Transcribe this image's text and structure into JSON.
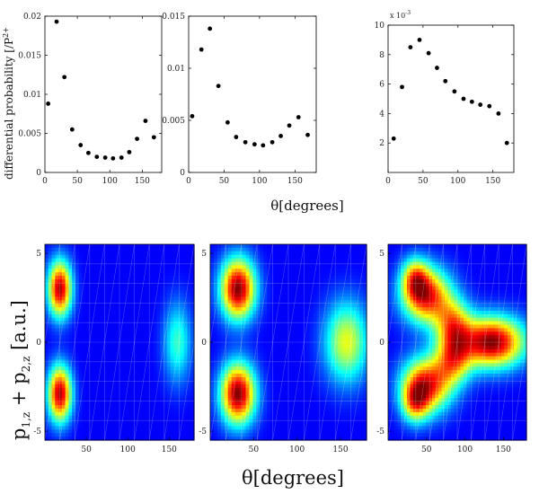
{
  "chart_data": {
    "type": "scatter",
    "figure": {
      "top_ylabel": "differential probability [/P",
      "top_ylabel_tail": "2+",
      "top_xlabel": "θ[degrees]",
      "bottom_ylabel_text": "p",
      "bottom_ylabel_sub1": "1,z",
      "bottom_ylabel_plus": " + p",
      "bottom_ylabel_sub2": "2,z",
      "bottom_ylabel_unit": " [a.u.]",
      "bottom_xlabel": "θ[degrees]"
    },
    "top_panels": [
      {
        "xlim": [
          0,
          180
        ],
        "ylim": [
          0,
          0.02
        ],
        "xticks": [
          {
            "v": 0,
            "label": "0"
          },
          {
            "v": 50,
            "label": "50"
          },
          {
            "v": 100,
            "label": "100"
          },
          {
            "v": 150,
            "label": "150"
          }
        ],
        "yticks": [
          {
            "v": 0,
            "label": "0"
          },
          {
            "v": 0.005,
            "label": "0.005"
          },
          {
            "v": 0.01,
            "label": "0.01"
          },
          {
            "v": 0.015,
            "label": "0.015"
          },
          {
            "v": 0.02,
            "label": "0.02"
          }
        ],
        "exponent_label": "",
        "x": [
          5,
          18,
          30,
          42,
          55,
          67,
          80,
          93,
          105,
          118,
          130,
          142,
          155,
          168
        ],
        "y": [
          0.0088,
          0.0193,
          0.0122,
          0.0055,
          0.0035,
          0.0025,
          0.002,
          0.0019,
          0.0018,
          0.0019,
          0.0026,
          0.0043,
          0.0066,
          0.0045
        ]
      },
      {
        "xlim": [
          0,
          180
        ],
        "ylim": [
          0,
          0.015
        ],
        "xticks": [
          {
            "v": 0,
            "label": "0"
          },
          {
            "v": 50,
            "label": "50"
          },
          {
            "v": 100,
            "label": "100"
          },
          {
            "v": 150,
            "label": "150"
          }
        ],
        "yticks": [
          {
            "v": 0,
            "label": "0"
          },
          {
            "v": 0.005,
            "label": "0.005"
          },
          {
            "v": 0.01,
            "label": "0.01"
          },
          {
            "v": 0.015,
            "label": "0.015"
          }
        ],
        "exponent_label": "",
        "x": [
          5,
          18,
          30,
          42,
          55,
          67,
          80,
          93,
          105,
          118,
          130,
          142,
          155,
          168
        ],
        "y": [
          0.0054,
          0.0118,
          0.0138,
          0.0083,
          0.0048,
          0.0034,
          0.0029,
          0.0027,
          0.0026,
          0.0029,
          0.0035,
          0.0045,
          0.0053,
          0.0036
        ]
      },
      {
        "xlim": [
          0,
          180
        ],
        "ylim": [
          0,
          0.01
        ],
        "xticks": [
          {
            "v": 0,
            "label": "0"
          },
          {
            "v": 50,
            "label": "50"
          },
          {
            "v": 100,
            "label": "100"
          },
          {
            "v": 150,
            "label": "150"
          }
        ],
        "yticks": [
          {
            "v": 0.002,
            "label": "2"
          },
          {
            "v": 0.004,
            "label": "4"
          },
          {
            "v": 0.006,
            "label": "6"
          },
          {
            "v": 0.008,
            "label": "8"
          },
          {
            "v": 0.01,
            "label": "10"
          }
        ],
        "exponent_label": "x 10",
        "exponent_power": "-3",
        "x": [
          8,
          20,
          32,
          45,
          58,
          70,
          82,
          95,
          108,
          120,
          132,
          145,
          158,
          170
        ],
        "y": [
          0.0023,
          0.0058,
          0.0085,
          0.009,
          0.0081,
          0.0071,
          0.0062,
          0.0055,
          0.005,
          0.0048,
          0.0046,
          0.0045,
          0.004,
          0.002
        ]
      }
    ],
    "bottom_panels": [
      {
        "type": "heatmap",
        "xlim": [
          0,
          180
        ],
        "ylim": [
          -5.5,
          5.5
        ],
        "xticks": [
          {
            "v": 50,
            "label": "50"
          },
          {
            "v": 100,
            "label": "100"
          },
          {
            "v": 150,
            "label": "150"
          }
        ],
        "yticks": [
          {
            "v": -5,
            "label": "-5"
          },
          {
            "v": 0,
            "label": "0"
          },
          {
            "v": 5,
            "label": "5"
          }
        ],
        "blobs": [
          {
            "x": 18,
            "y": 3.0,
            "sx": 10,
            "sy": 1.1,
            "a": 0.95
          },
          {
            "x": 18,
            "y": -2.9,
            "sx": 10,
            "sy": 1.1,
            "a": 0.95
          },
          {
            "x": 160,
            "y": 0.0,
            "sx": 12,
            "sy": 1.6,
            "a": 0.35
          }
        ]
      },
      {
        "type": "heatmap",
        "xlim": [
          0,
          180
        ],
        "ylim": [
          -5.5,
          5.5
        ],
        "xticks": [
          {
            "v": 50,
            "label": "50"
          },
          {
            "v": 100,
            "label": "100"
          },
          {
            "v": 150,
            "label": "150"
          }
        ],
        "yticks": [
          {
            "v": -5,
            "label": "-5"
          },
          {
            "v": 0,
            "label": "0"
          },
          {
            "v": 5,
            "label": "5"
          }
        ],
        "blobs": [
          {
            "x": 32,
            "y": 3.0,
            "sx": 14,
            "sy": 1.2,
            "a": 1.0
          },
          {
            "x": 32,
            "y": -2.9,
            "sx": 14,
            "sy": 1.2,
            "a": 1.0
          },
          {
            "x": 157,
            "y": 0.0,
            "sx": 18,
            "sy": 1.6,
            "a": 0.55
          }
        ]
      },
      {
        "type": "heatmap",
        "xlim": [
          0,
          180
        ],
        "ylim": [
          -5.5,
          5.5
        ],
        "xticks": [
          {
            "v": 50,
            "label": "50"
          },
          {
            "v": 100,
            "label": "100"
          },
          {
            "v": 150,
            "label": "150"
          }
        ],
        "yticks": [
          {
            "v": -5,
            "label": "-5"
          },
          {
            "v": 0,
            "label": "0"
          },
          {
            "v": 5,
            "label": "5"
          }
        ],
        "blobs": [
          {
            "x": 50,
            "y": 2.6,
            "sx": 22,
            "sy": 1.1,
            "a": 0.85
          },
          {
            "x": 50,
            "y": -2.4,
            "sx": 22,
            "sy": 1.1,
            "a": 0.85
          },
          {
            "x": 85,
            "y": 1.0,
            "sx": 16,
            "sy": 1.0,
            "a": 0.55
          },
          {
            "x": 85,
            "y": -1.0,
            "sx": 16,
            "sy": 1.0,
            "a": 0.55
          },
          {
            "x": 135,
            "y": 0.0,
            "sx": 30,
            "sy": 1.0,
            "a": 1.0
          },
          {
            "x": 35,
            "y": 3.6,
            "sx": 12,
            "sy": 0.8,
            "a": 0.5
          },
          {
            "x": 35,
            "y": -3.4,
            "sx": 12,
            "sy": 0.8,
            "a": 0.5
          }
        ]
      }
    ]
  }
}
